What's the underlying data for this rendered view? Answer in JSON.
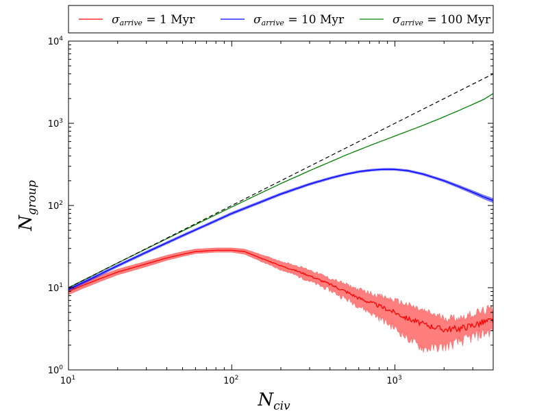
{
  "chart_data": {
    "type": "line",
    "xscale": "log",
    "yscale": "log",
    "xlim": [
      10,
      4000
    ],
    "ylim": [
      1,
      10000
    ],
    "xlabel": {
      "main": "N",
      "sub": "civ"
    },
    "ylabel": {
      "main": "N",
      "sub": "group"
    },
    "x_ticks": [
      {
        "value": 10,
        "base": "10",
        "exp": "1"
      },
      {
        "value": 100,
        "base": "10",
        "exp": "2"
      },
      {
        "value": 1000,
        "base": "10",
        "exp": "3"
      }
    ],
    "y_ticks": [
      {
        "value": 1,
        "base": "10",
        "exp": "0"
      },
      {
        "value": 10,
        "base": "10",
        "exp": "1"
      },
      {
        "value": 100,
        "base": "10",
        "exp": "2"
      },
      {
        "value": 1000,
        "base": "10",
        "exp": "3"
      },
      {
        "value": 10000,
        "base": "10",
        "exp": "4"
      }
    ],
    "legend_position": "top",
    "series": [
      {
        "name": "sigma_arrive = 1 Myr",
        "legend": {
          "sym": "σ",
          "sub": "arrive",
          "eq": " = 1 Myr"
        },
        "color": "#ff0000",
        "band_color": "#ff0000",
        "x": [
          10,
          12,
          15,
          20,
          30,
          40,
          50,
          60,
          80,
          100,
          120,
          150,
          200,
          250,
          300,
          400,
          500,
          600,
          800,
          1000,
          1200,
          1500,
          2000,
          2500,
          3000,
          3500,
          4000
        ],
        "y": [
          9.0,
          10.5,
          12.5,
          15.5,
          19.5,
          23,
          25.5,
          27.5,
          28.5,
          28.5,
          27.5,
          23,
          18.5,
          16,
          14,
          11,
          9,
          7.5,
          6,
          5,
          4.2,
          3.6,
          3.1,
          3.2,
          3.5,
          3.8,
          4.0
        ],
        "lo": [
          8.2,
          9.6,
          11.5,
          14.3,
          18.0,
          21.5,
          24,
          26,
          27,
          27,
          25.5,
          21,
          16.5,
          14,
          12,
          9.3,
          7.3,
          6,
          4.3,
          3.2,
          2.4,
          1.8,
          1.9,
          2.2,
          2.5,
          2.8,
          3.0
        ],
        "hi": [
          9.8,
          11.4,
          13.6,
          16.8,
          21.0,
          24.8,
          27.5,
          29.5,
          30.5,
          30.5,
          29.5,
          25.5,
          21,
          18.5,
          16.5,
          13,
          11,
          9.5,
          8,
          7,
          6.2,
          5.2,
          4.3,
          4.3,
          4.8,
          5.2,
          5.6
        ],
        "noisy": true
      },
      {
        "name": "sigma_arrive = 10 Myr",
        "legend": {
          "sym": "σ",
          "sub": "arrive",
          "eq": " = 10 Myr"
        },
        "color": "#0000ff",
        "band_color": "#0000ff",
        "x": [
          10,
          15,
          20,
          30,
          50,
          70,
          100,
          150,
          200,
          300,
          400,
          500,
          600,
          700,
          800,
          900,
          1000,
          1200,
          1500,
          2000,
          2500,
          3000,
          3500,
          4000
        ],
        "y": [
          9.5,
          14,
          18.5,
          27,
          43,
          58,
          80,
          110,
          138,
          182,
          215,
          240,
          258,
          268,
          274,
          276,
          275,
          265,
          240,
          200,
          168,
          145,
          127,
          115
        ],
        "lo": [
          9.1,
          13.4,
          17.8,
          26,
          41.5,
          56,
          77,
          106,
          133,
          176,
          208,
          233,
          250,
          260,
          266,
          268,
          267,
          257,
          232,
          193,
          161,
          138,
          120,
          108
        ],
        "hi": [
          9.9,
          14.6,
          19.2,
          28,
          44.5,
          60,
          83,
          114,
          143,
          188,
          222,
          247,
          266,
          276,
          282,
          284,
          283,
          273,
          248,
          207,
          175,
          152,
          134,
          122
        ],
        "noisy": false
      },
      {
        "name": "sigma_arrive = 100 Myr",
        "legend": {
          "sym": "σ",
          "sub": "arrive",
          "eq": " = 100 Myr"
        },
        "color": "#008000",
        "x": [
          10,
          20,
          50,
          100,
          200,
          300,
          500,
          700,
          1000,
          1500,
          2000,
          2500,
          3000,
          3500,
          4000
        ],
        "y": [
          10,
          20,
          49,
          96,
          185,
          265,
          410,
          535,
          700,
          950,
          1200,
          1450,
          1700,
          1950,
          2300
        ],
        "noisy": false
      },
      {
        "name": "reference N_group = N_civ",
        "color": "#000000",
        "dashed": true,
        "x": [
          10,
          4000
        ],
        "y": [
          10,
          4000
        ]
      }
    ]
  }
}
